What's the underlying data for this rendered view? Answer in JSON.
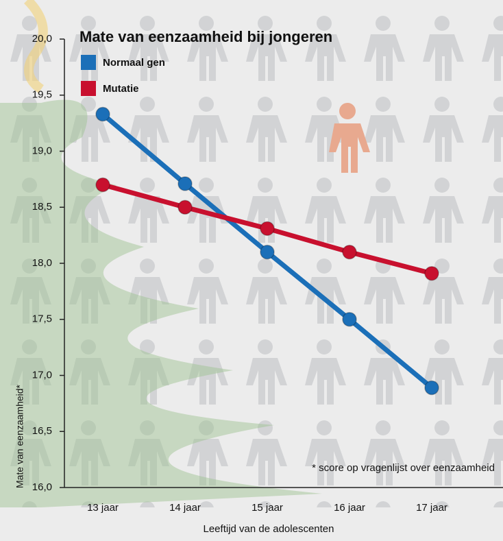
{
  "chart_data": {
    "type": "line",
    "title": "Mate van eenzaamheid bij jongeren",
    "x_label": "Leeftijd van de adolescenten",
    "y_label": "Mate van eenzaamheid*",
    "annotation": "* score op vragenlijst over eenzaamheid",
    "categories": [
      "13 jaar",
      "14 jaar",
      "15 jaar",
      "16 jaar",
      "17 jaar"
    ],
    "series": [
      {
        "name": "Normaal gen",
        "color": "#1b6fb8",
        "values": [
          19.33,
          18.71,
          18.1,
          17.5,
          16.89
        ]
      },
      {
        "name": "Mutatie",
        "color": "#c8102e",
        "values": [
          18.7,
          18.5,
          18.31,
          18.1,
          17.91
        ]
      }
    ],
    "ylim": [
      16.0,
      20.0
    ],
    "yticks": [
      {
        "value": 16.0,
        "label": "16,0"
      },
      {
        "value": 16.5,
        "label": "16,5"
      },
      {
        "value": 17.0,
        "label": "17,0"
      },
      {
        "value": 17.5,
        "label": "17,5"
      },
      {
        "value": 18.0,
        "label": "18,0"
      },
      {
        "value": 18.5,
        "label": "18,5"
      },
      {
        "value": 19.0,
        "label": "19,0"
      },
      {
        "value": 19.5,
        "label": "19,5"
      },
      {
        "value": 20.0,
        "label": "20,0"
      }
    ]
  }
}
